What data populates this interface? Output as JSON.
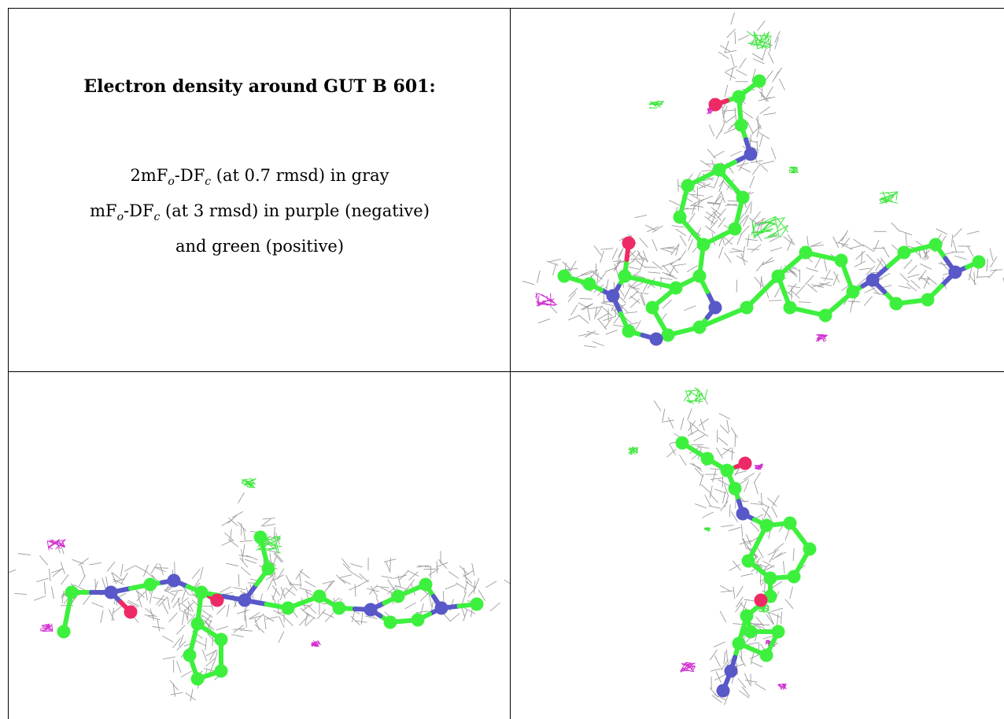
{
  "caption": {
    "title": "Electron density around GUT B 601:",
    "line1": {
      "pre": "2mF",
      "sub1": "o",
      "mid": "-DF",
      "sub2": "c",
      "post": " (at 0.7 rmsd) in gray"
    },
    "line2": {
      "pre": "mF",
      "sub1": "o",
      "mid": "-DF",
      "sub2": "c",
      "post": " (at 3 rmsd) in purple (negative)"
    },
    "line3": "and green (positive)"
  },
  "colors": {
    "carbon": "#3ef03e",
    "nitrogen": "#5858c8",
    "oxygen": "#ee2a66",
    "mesh_gray": "#8a8a8a",
    "diff_positive": "#3ee63e",
    "diff_negative": "#d030d0",
    "border": "#000000"
  },
  "panels": [
    {
      "id": "top-right",
      "view": "front"
    },
    {
      "id": "bottom-left",
      "view": "side"
    },
    {
      "id": "bottom-right",
      "view": "end"
    }
  ]
}
